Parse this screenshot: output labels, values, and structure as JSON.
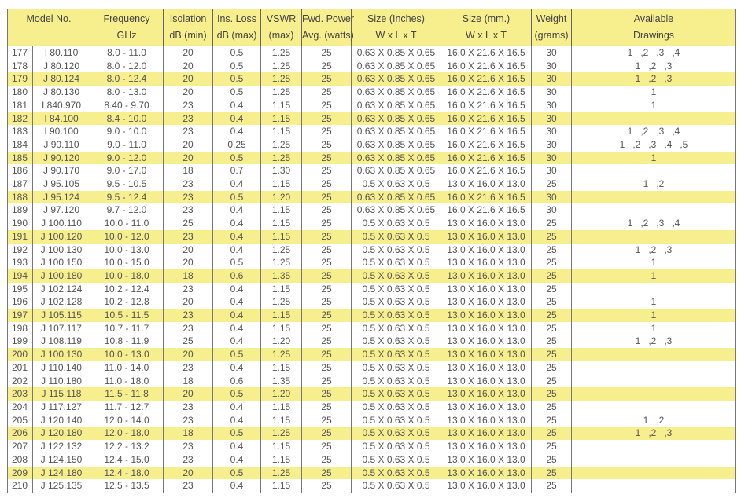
{
  "colors": {
    "highlight": "#f7ee8e",
    "header": "#f7ee8e",
    "text": "#555555"
  },
  "headers": [
    {
      "line1": "Model No.",
      "line2": ""
    },
    {
      "line1": "Frequency",
      "line2": "GHz"
    },
    {
      "line1": "Isolation",
      "line2": "dB (min)"
    },
    {
      "line1": "Ins. Loss",
      "line2": "dB (max)"
    },
    {
      "line1": "VSWR",
      "line2": "(max)"
    },
    {
      "line1": "Fwd. Power",
      "line2": "Avg. (watts)"
    },
    {
      "line1": "Size (Inches)",
      "line2": "W x L x T"
    },
    {
      "line1": "Size (mm.)",
      "line2": "W x L x T"
    },
    {
      "line1": "Weight",
      "line2": "(grams)"
    },
    {
      "line1": "Available",
      "line2": "Drawings"
    }
  ],
  "rows": [
    [
      "177",
      "I 80.110",
      "8.0 - 11.0",
      "20",
      "0.5",
      "1.25",
      "25",
      "0.63 X 0.85 X 0.65",
      "16.0 X 21.6 X 16.5",
      "30",
      "1   ,2   ,3   ,4"
    ],
    [
      "178",
      "J 80.120",
      "8.0 - 12.0",
      "20",
      "0.5",
      "1.25",
      "25",
      "0.63 X 0.85 X 0.65",
      "16.0 X 21.6 X 16.5",
      "30",
      "1   ,2   ,3"
    ],
    [
      "179",
      "J 80.124",
      "8.0 - 12.4",
      "20",
      "0.5",
      "1.25",
      "25",
      "0.63 X 0.85 X 0.65",
      "16.0 X 21.6 X 16.5",
      "30",
      "1   ,2   ,3"
    ],
    [
      "180",
      "J 80.130",
      "8.0 - 13.0",
      "20",
      "0.5",
      "1.25",
      "25",
      "0.63 X 0.85 X 0.65",
      "16.0 X 21.6 X 16.5",
      "30",
      "1"
    ],
    [
      "181",
      "I 840.970",
      "8.40 - 9.70",
      "23",
      "0.4",
      "1.15",
      "25",
      "0.63 X 0.85 X 0.65",
      "16.0 X 21.6 X 16.5",
      "30",
      "1"
    ],
    [
      "182",
      "I 84.100",
      "8.4 - 10.0",
      "23",
      "0.4",
      "1.15",
      "25",
      "0.63 X 0.85 X 0.65",
      "16.0 X 21.6 X 16.5",
      "30",
      ""
    ],
    [
      "183",
      "I 90.100",
      "9.0 - 10.0",
      "23",
      "0.4",
      "1.15",
      "25",
      "0.63 X 0.85 X 0.65",
      "16.0 X 21.6 X 16.5",
      "30",
      "1   ,2   ,3   ,4"
    ],
    [
      "184",
      "J 90.110",
      "9.0 - 11.0",
      "20",
      "0.25",
      "1.25",
      "25",
      "0.63 X 0.85 X 0.65",
      "16.0 X 21.6 X 16.5",
      "30",
      "1   ,2   ,3   ,4   ,5"
    ],
    [
      "185",
      "J 90.120",
      "9.0 - 12.0",
      "20",
      "0.5",
      "1.25",
      "25",
      "0.63 X 0.85 X 0.65",
      "16.0 X 21.6 X 16.5",
      "30",
      "1"
    ],
    [
      "186",
      "J 90.170",
      "9.0 - 17.0",
      "18",
      "0.7",
      "1.30",
      "25",
      "0.63 X 0.85 X 0.65",
      "16.0 X 21.6 X 16.5",
      "30",
      ""
    ],
    [
      "187",
      "J 95.105",
      "9.5 - 10.5",
      "23",
      "0.4",
      "1.15",
      "25",
      "0.5 X 0.63 X 0.5",
      "13.0 X 16.0 X 13.0",
      "25",
      "1   ,2"
    ],
    [
      "188",
      "J 95.124",
      "9.5 - 12.4",
      "23",
      "0.5",
      "1.20",
      "25",
      "0.63 X 0.85 X 0.65",
      "16.0 X 21.6 X 16.5",
      "30",
      ""
    ],
    [
      "189",
      "J 97.120",
      "9.7 - 12.0",
      "23",
      "0.4",
      "1.15",
      "25",
      "0.63 X 0.85 X 0.65",
      "16.0 X 21.6 X 16.5",
      "30",
      ""
    ],
    [
      "190",
      "J 100.110",
      "10.0 - 11.0",
      "25",
      "0.4",
      "1.15",
      "25",
      "0.5 X 0.63 X 0.5",
      "13.0 X 16.0 X 13.0",
      "25",
      "1   ,2   ,3   ,4"
    ],
    [
      "191",
      "J 100.120",
      "10.0 - 12.0",
      "23",
      "0.4",
      "1.15",
      "25",
      "0.5 X 0.63 X 0.5",
      "13.0 X 16.0 X 13.0",
      "25",
      ""
    ],
    [
      "192",
      "J 100.130",
      "10.0 - 13.0",
      "20",
      "0.4",
      "1.25",
      "25",
      "0.5 X 0.63 X 0.5",
      "13.0 X 16.0 X 13.0",
      "25",
      "1   ,2   ,3"
    ],
    [
      "193",
      "J 100.150",
      "10.0 - 15.0",
      "20",
      "0.5",
      "1.25",
      "25",
      "0.5 X 0.63 X 0.5",
      "13.0 X 16.0 X 13.0",
      "25",
      "1"
    ],
    [
      "194",
      "J 100.180",
      "10.0 - 18.0",
      "18",
      "0.6",
      "1.35",
      "25",
      "0.5 X 0.63 X 0.5",
      "13.0 X 16.0 X 13.0",
      "25",
      "1"
    ],
    [
      "195",
      "J 102.124",
      "10.2 - 12.4",
      "23",
      "0.4",
      "1.15",
      "25",
      "0.5 X 0.63 X 0.5",
      "13.0 X 16.0 X 13.0",
      "25",
      ""
    ],
    [
      "196",
      "J 102.128",
      "10.2 - 12.8",
      "20",
      "0.4",
      "1.25",
      "25",
      "0.5 X 0.63 X 0.5",
      "13.0 X 16.0 X 13.0",
      "25",
      "1"
    ],
    [
      "197",
      "J 105.115",
      "10.5 - 11.5",
      "23",
      "0.4",
      "1.15",
      "25",
      "0.5 X 0.63 X 0.5",
      "13.0 X 16.0 X 13.0",
      "25",
      "1"
    ],
    [
      "198",
      "J 107.117",
      "10.7 - 11.7",
      "23",
      "0.4",
      "1.15",
      "25",
      "0.5 X 0.63 X 0.5",
      "13.0 X 16.0 X 13.0",
      "25",
      "1"
    ],
    [
      "199",
      "J 108.119",
      "10.8 - 11.9",
      "25",
      "0.4",
      "1.20",
      "25",
      "0.5 X 0.63 X 0.5",
      "13.0 X 16.0 X 13.0",
      "25",
      "1   ,2   ,3"
    ],
    [
      "200",
      "J 100.130",
      "10.0 - 13.0",
      "20",
      "0.5",
      "1.25",
      "25",
      "0.5 X 0.63 X 0.5",
      "13.0 X 16.0 X 13.0",
      "25",
      ""
    ],
    [
      "201",
      "J 110.140",
      "11.0 - 14.0",
      "23",
      "0.4",
      "1.15",
      "25",
      "0.5 X 0.63 X 0.5",
      "13.0 X 16.0 X 13.0",
      "25",
      ""
    ],
    [
      "202",
      "J 110.180",
      "11.0 - 18.0",
      "18",
      "0.6",
      "1.35",
      "25",
      "0.5 X 0.63 X 0.5",
      "13.0 X 16.0 X 13.0",
      "25",
      ""
    ],
    [
      "203",
      "J 115.118",
      "11.5 - 11.8",
      "20",
      "0.5",
      "1.20",
      "25",
      "0.5 X 0.63 X 0.5",
      "13.0 X 16.0 X 13.0",
      "25",
      ""
    ],
    [
      "204",
      "J 117.127",
      "11.7 - 12.7",
      "23",
      "0.4",
      "1.15",
      "25",
      "0.5 X 0.63 X 0.5",
      "13.0 X 16.0 X 13.0",
      "25",
      ""
    ],
    [
      "205",
      "J 120.140",
      "12.0 - 14.0",
      "23",
      "0.4",
      "1.15",
      "25",
      "0.5 X 0.63 X 0.5",
      "13.0 X 16.0 X 13.0",
      "25",
      "1   ,2"
    ],
    [
      "206",
      "J 120.180",
      "12.0 - 18.0",
      "18",
      "0.5",
      "1.25",
      "25",
      "0.5 X 0.63 X 0.5",
      "13.0 X 16.0 X 13.0",
      "25",
      "1   ,2   ,3"
    ],
    [
      "207",
      "J 122.132",
      "12.2 - 13.2",
      "23",
      "0.4",
      "1.15",
      "25",
      "0.5 X 0.63 X 0.5",
      "13.0 X 16.0 X 13.0",
      "25",
      ""
    ],
    [
      "208",
      "J 124.150",
      "12.4 - 15.0",
      "23",
      "0.4",
      "1.15",
      "25",
      "0.5 X 0.63 X 0.5",
      "13.0 X 16.0 X 13.0",
      "25",
      ""
    ],
    [
      "209",
      "J 124.180",
      "12.4 - 18.0",
      "20",
      "0.5",
      "1.25",
      "25",
      "0.5 X 0.63 X 0.5",
      "13.0 X 16.0 X 13.0",
      "25",
      ""
    ],
    [
      "210",
      "J 125.135",
      "12.5 - 13.5",
      "23",
      "0.4",
      "1.15",
      "25",
      "0.5 X 0.63 X 0.5",
      "13.0 X 16.0 X 13.0",
      "25",
      ""
    ]
  ]
}
